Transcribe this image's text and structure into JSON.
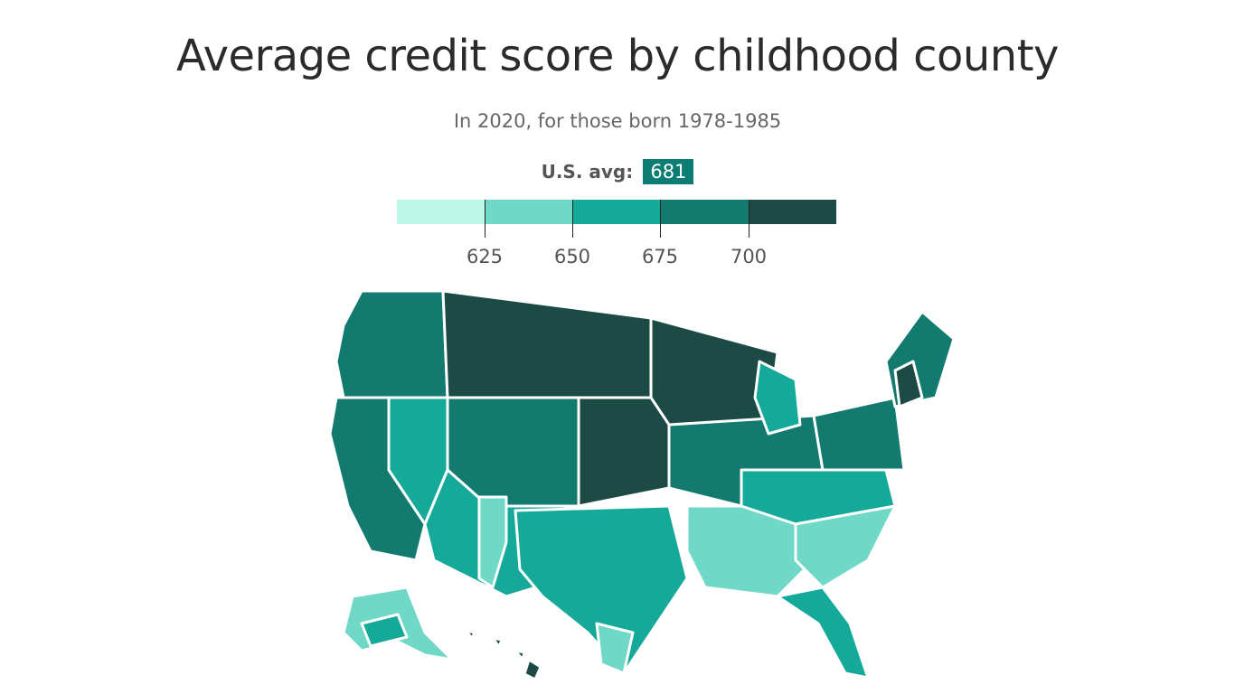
{
  "header": {
    "title": "Average credit score by childhood county",
    "subtitle": "In 2020, for those born 1978-1985"
  },
  "average": {
    "label": "U.S. avg:",
    "value": "681"
  },
  "legend": {
    "colors": [
      "#baf7e6",
      "#6fd8c6",
      "#14a999",
      "#137a6f",
      "#1c4b46"
    ],
    "thresholds": [
      {
        "label": "625"
      },
      {
        "label": "650"
      },
      {
        "label": "675"
      },
      {
        "label": "700"
      }
    ]
  },
  "map": {
    "region": "United States counties",
    "levels": {
      "lowest": "#baf7e6",
      "low": "#6fd8c6",
      "mid": "#14a999",
      "high": "#137a6f",
      "highest": "#1c4b46"
    }
  }
}
